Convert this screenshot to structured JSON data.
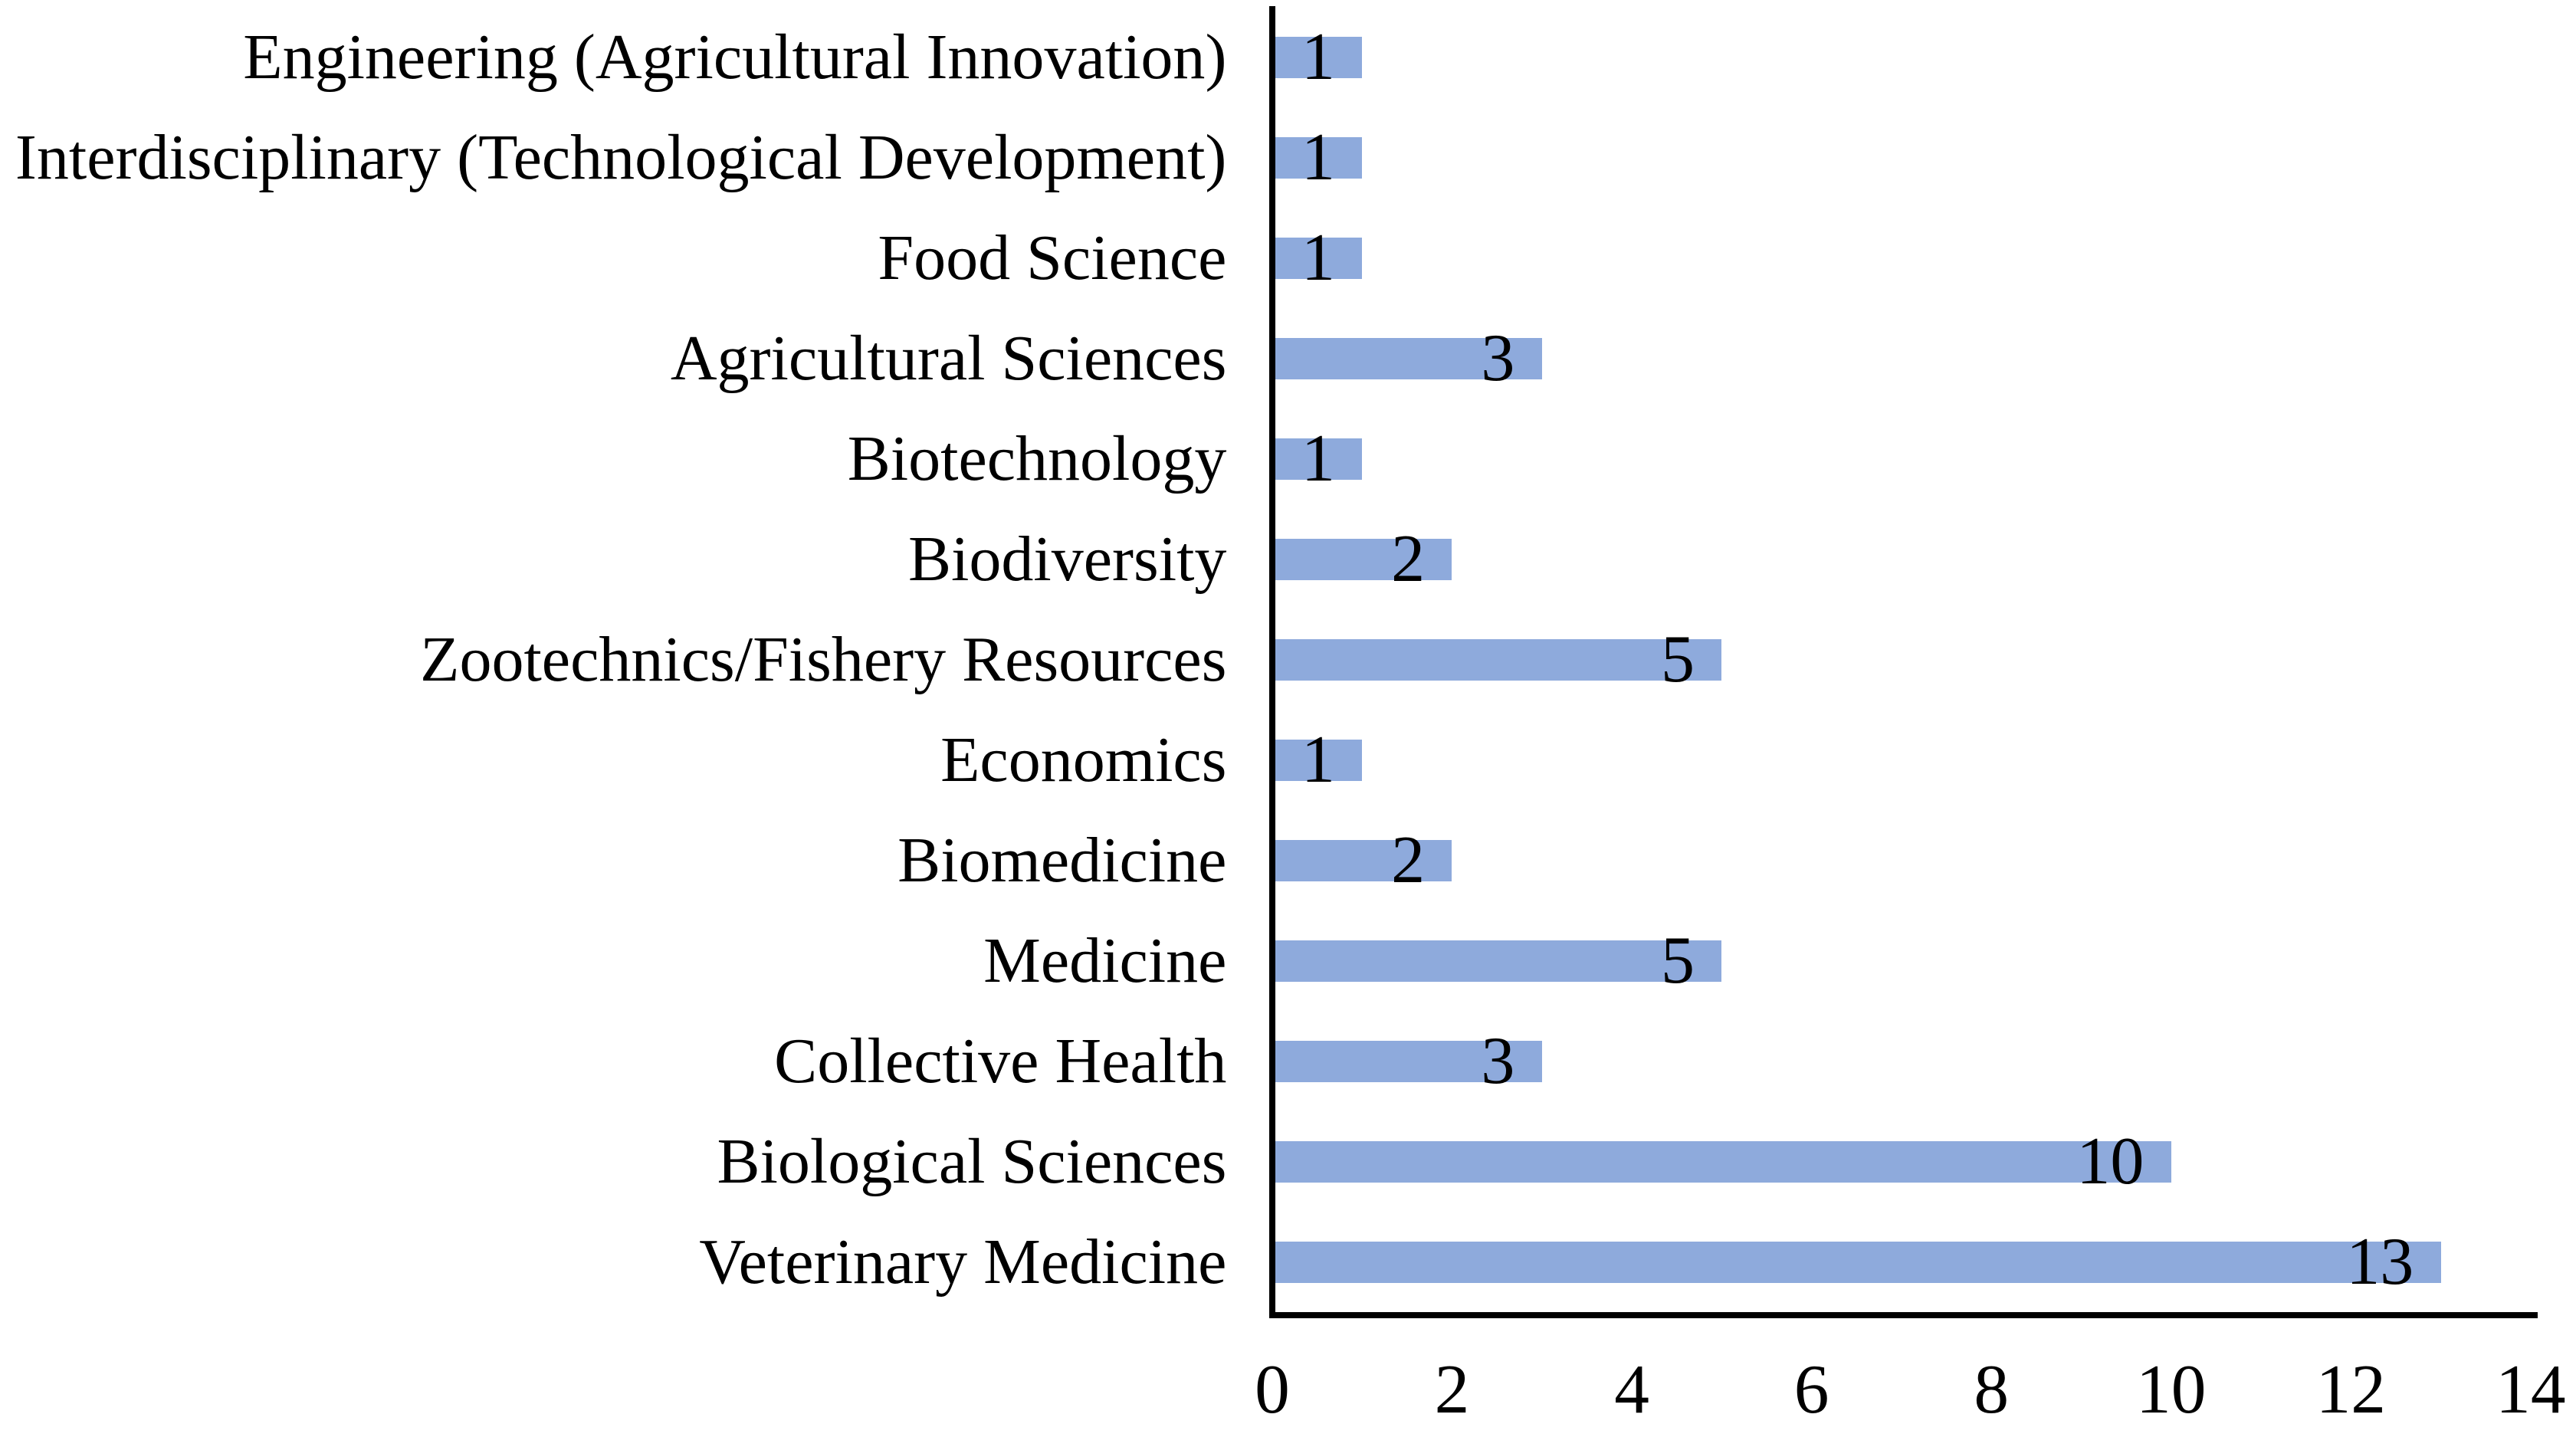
{
  "chart_data": {
    "type": "bar",
    "orientation": "horizontal",
    "title": "",
    "xlabel": "",
    "ylabel": "",
    "categories": [
      "Engineering (Agricultural Innovation)",
      "Interdisciplinary (Technological Development)",
      "Food Science",
      "Agricultural Sciences",
      "Biotechnology",
      "Biodiversity",
      "Zootechnics/Fishery Resources",
      "Economics",
      "Biomedicine",
      "Medicine",
      "Collective Health",
      "Biological Sciences",
      "Veterinary Medicine"
    ],
    "values": [
      1,
      1,
      1,
      3,
      1,
      2,
      5,
      1,
      2,
      5,
      3,
      10,
      13
    ],
    "xlim": [
      0,
      14
    ],
    "xticks": [
      0,
      2,
      4,
      6,
      8,
      10,
      12,
      14
    ],
    "grid": false,
    "legend": false,
    "value_labels_position": "inside-end",
    "bar_color": "#8EAADC",
    "axis_color": "#000000",
    "text_color": "#000000",
    "background_color": "#FFFFFF"
  }
}
